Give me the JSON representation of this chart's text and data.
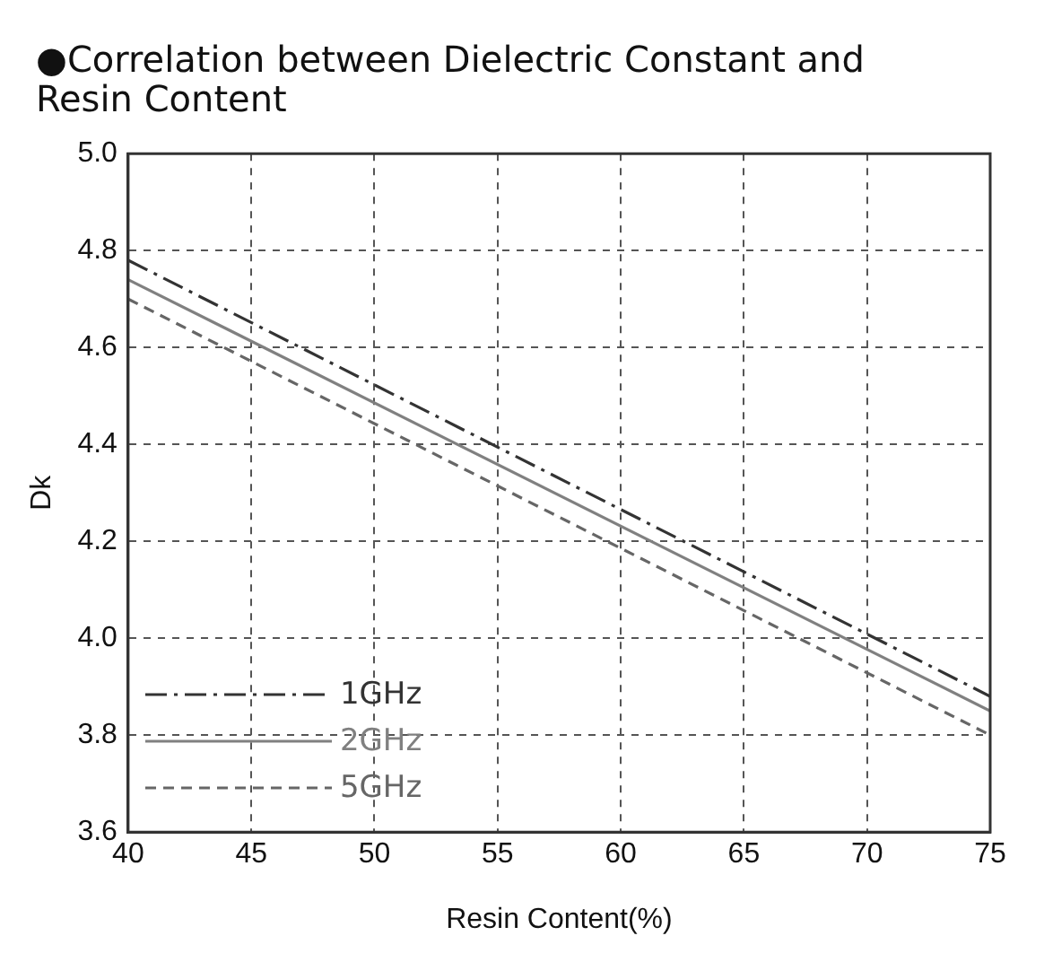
{
  "chart_data": {
    "type": "line",
    "title": "●Correlation between Dielectric Constant and Resin Content",
    "xlabel": "Resin Content(%)",
    "ylabel": "Dk",
    "x": [
      40,
      75
    ],
    "series": [
      {
        "name": "1GHz",
        "color": "#333333",
        "line_style": "dashdot",
        "values": [
          4.78,
          3.88
        ]
      },
      {
        "name": "2GHz",
        "color": "#808080",
        "line_style": "solid",
        "values": [
          4.74,
          3.85
        ]
      },
      {
        "name": "5GHz",
        "color": "#666666",
        "line_style": "dashed",
        "values": [
          4.7,
          3.8
        ]
      }
    ],
    "xlim": [
      40,
      75
    ],
    "xticks": [
      40,
      45,
      50,
      55,
      60,
      65,
      70,
      75
    ],
    "ylim": [
      3.6,
      5.0
    ],
    "yticks": [
      3.6,
      3.8,
      {
        "value": 4,
        "label": "4.0"
      },
      4.2,
      4.4,
      4.6,
      4.8,
      {
        "value": 5,
        "label": "5.0"
      }
    ],
    "grid": true,
    "legend": "bottom left",
    "marker": "none"
  }
}
